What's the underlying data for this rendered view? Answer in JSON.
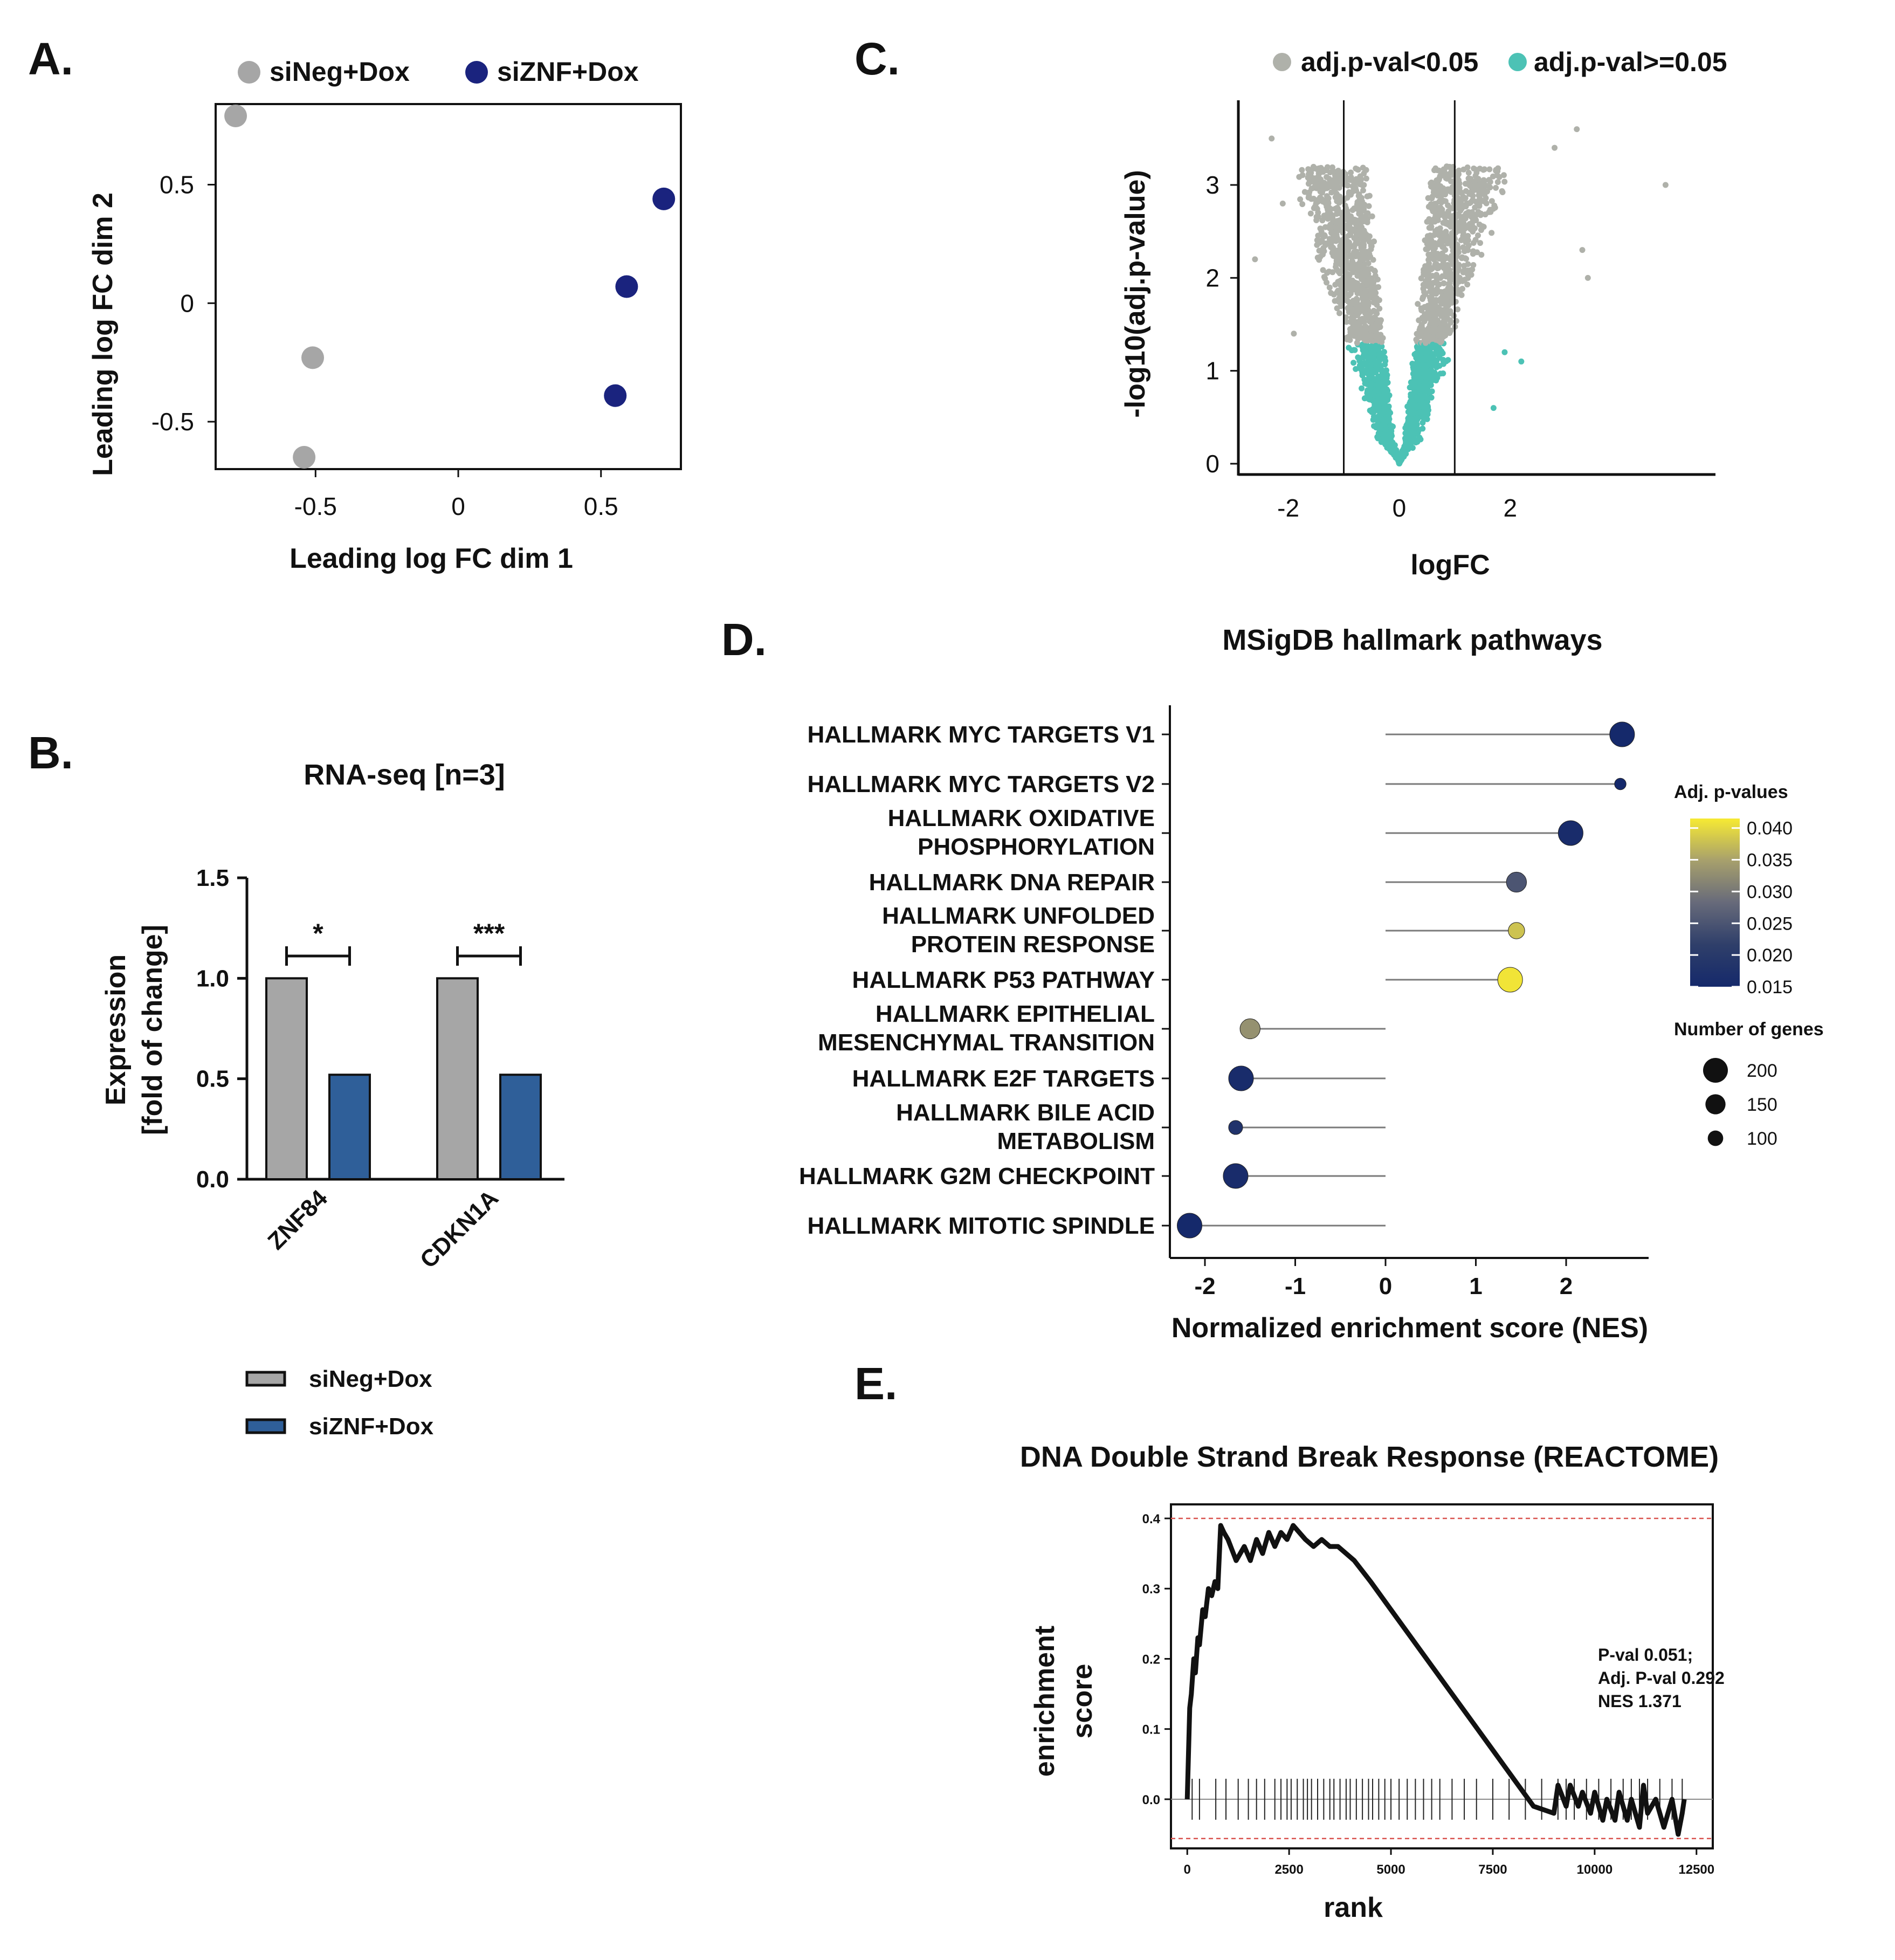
{
  "panels": {
    "A": {
      "label": "A."
    },
    "B": {
      "label": "B."
    },
    "C": {
      "label": "C."
    },
    "D": {
      "label": "D."
    },
    "E": {
      "label": "E."
    }
  },
  "chart_data": [
    {
      "id": "A",
      "type": "scatter",
      "title": "",
      "xlabel": "Leading log FC dim 1",
      "ylabel": "Leading log FC dim 2",
      "xlim": [
        -0.85,
        0.78
      ],
      "ylim": [
        -0.7,
        0.84
      ],
      "xticks": [
        "-0.5",
        "0",
        "0.5"
      ],
      "xtick_values": [
        -0.5,
        0,
        0.5
      ],
      "yticks": [
        "-0.5",
        "0",
        "0.5"
      ],
      "ytick_values": [
        -0.5,
        0,
        0.5
      ],
      "legend_position": "top",
      "series": [
        {
          "name": "siNeg+Dox",
          "color": "#a6a6a6",
          "points": [
            [
              -0.78,
              0.79
            ],
            [
              -0.51,
              -0.23
            ],
            [
              -0.54,
              -0.65
            ]
          ]
        },
        {
          "name": "siZNF+Dox",
          "color": "#1a237e",
          "points": [
            [
              0.72,
              0.44
            ],
            [
              0.59,
              0.07
            ],
            [
              0.55,
              -0.39
            ]
          ]
        }
      ]
    },
    {
      "id": "B",
      "type": "bar",
      "title": "RNA-seq [n=3]",
      "xlabel": "",
      "ylabel": "Expression [fold of change]",
      "ylabel_lines": [
        "Expression",
        "[fold of change]"
      ],
      "ylim": [
        0,
        1.5
      ],
      "yticks": [
        "0.0",
        "0.5",
        "1.0",
        "1.5"
      ],
      "ytick_values": [
        0,
        0.5,
        1.0,
        1.5
      ],
      "categories": [
        "ZNF84",
        "CDKN1A"
      ],
      "significance": [
        "*",
        "***"
      ],
      "legend_position": "bottom",
      "series": [
        {
          "name": "siNeg+Dox",
          "color": "#a6a6a6",
          "values": [
            1.0,
            1.0
          ]
        },
        {
          "name": "siZNF+Dox",
          "color": "#2f5f99",
          "values": [
            0.52,
            0.52
          ]
        }
      ]
    },
    {
      "id": "C",
      "type": "scatter",
      "subtype": "volcano",
      "title": "",
      "xlabel": "logFC",
      "ylabel": "-log10(adj.p-value)",
      "xlim": [
        -2.9,
        5.7
      ],
      "ylim": [
        -0.15,
        3.9
      ],
      "xticks": [
        "-2",
        "0",
        "2"
      ],
      "xtick_values": [
        -2,
        0,
        2
      ],
      "yticks": [
        "0",
        "1",
        "2",
        "3"
      ],
      "ytick_values": [
        0,
        1,
        2,
        3
      ],
      "threshold_lines_x": [
        -1,
        1
      ],
      "significance_cutoff_y": 1.3,
      "legend_position": "top",
      "series": [
        {
          "name": "adj.p-val<0.05",
          "color": "#afb1aa"
        },
        {
          "name": "adj.p-val>=0.05",
          "color": "#4cc2b5"
        }
      ]
    },
    {
      "id": "D",
      "type": "scatter",
      "subtype": "lollipop",
      "title": "MSigDB  hallmark pathways",
      "xlabel": "Normalized enrichment score (NES)",
      "ylabel": "",
      "xlim": [
        -2.4,
        2.85
      ],
      "xticks": [
        "-2",
        "-1",
        "0",
        "1",
        "2"
      ],
      "xtick_values": [
        -2,
        -1,
        0,
        1,
        2
      ],
      "color_legend_title": "Adj. p-values",
      "color_range": [
        0.015,
        0.0415
      ],
      "color_ticks": [
        "0.040",
        "0.035",
        "0.030",
        "0.025",
        "0.020",
        "0.015"
      ],
      "color_tick_values": [
        0.04,
        0.035,
        0.03,
        0.025,
        0.02,
        0.015
      ],
      "size_legend_title": "Number of genes",
      "size_ticks": [
        "200",
        "150",
        "100"
      ],
      "size_tick_values": [
        200,
        150,
        100
      ],
      "pathways": [
        {
          "name": [
            "HALLMARK MYC TARGETS V1"
          ],
          "nes": 2.62,
          "padj": 0.015,
          "size": 200
        },
        {
          "name": [
            "HALLMARK MYC TARGETS V2"
          ],
          "nes": 2.6,
          "padj": 0.015,
          "size": 58
        },
        {
          "name": [
            "HALLMARK OXIDATIVE",
            "PHOSPHORYLATION"
          ],
          "nes": 2.05,
          "padj": 0.016,
          "size": 200
        },
        {
          "name": [
            "HALLMARK DNA REPAIR"
          ],
          "nes": 1.45,
          "padj": 0.025,
          "size": 150
        },
        {
          "name": [
            "HALLMARK UNFOLDED",
            "PROTEIN RESPONSE"
          ],
          "nes": 1.45,
          "padj": 0.038,
          "size": 110
        },
        {
          "name": [
            "HALLMARK P53 PATHWAY"
          ],
          "nes": 1.38,
          "padj": 0.041,
          "size": 200
        },
        {
          "name": [
            "HALLMARK EPITHELIAL",
            "MESENCHYMAL TRANSITION"
          ],
          "nes": -1.5,
          "padj": 0.033,
          "size": 150
        },
        {
          "name": [
            "HALLMARK E2F TARGETS"
          ],
          "nes": -1.6,
          "padj": 0.016,
          "size": 200
        },
        {
          "name": [
            "HALLMARK BILE ACID",
            "METABOLISM"
          ],
          "nes": -1.66,
          "padj": 0.018,
          "size": 85
        },
        {
          "name": [
            "HALLMARK G2M CHECKPOINT"
          ],
          "nes": -1.66,
          "padj": 0.016,
          "size": 200
        },
        {
          "name": [
            "HALLMARK MITOTIC SPINDLE"
          ],
          "nes": -2.17,
          "padj": 0.015,
          "size": 200
        }
      ]
    },
    {
      "id": "E",
      "type": "line",
      "title": "DNA Double Strand Break Response (REACTOME)",
      "xlabel": "rank",
      "ylabel": "enrichment score",
      "ylabel_lines": [
        "enrichment",
        "score"
      ],
      "xlim": [
        -400,
        12900
      ],
      "ylim": [
        -0.07,
        0.42
      ],
      "xticks": [
        "0",
        "2500",
        "5000",
        "7500",
        "10000",
        "12500"
      ],
      "xtick_values": [
        0,
        2500,
        5000,
        7500,
        10000,
        12500
      ],
      "yticks": [
        "0.0",
        "0.1",
        "0.2",
        "0.3",
        "0.4"
      ],
      "ytick_values": [
        0,
        0.1,
        0.2,
        0.3,
        0.4
      ],
      "dashed_lines_y": [
        0.4,
        -0.056
      ],
      "annotation": [
        "P-val 0.051;",
        "Adj. P-val 0.292",
        "NES 1.371"
      ],
      "x": [
        0,
        60,
        100,
        160,
        200,
        260,
        300,
        380,
        440,
        520,
        600,
        680,
        750,
        820,
        900,
        1000,
        1200,
        1400,
        1550,
        1700,
        1850,
        2000,
        2150,
        2300,
        2450,
        2600,
        2750,
        2900,
        3100,
        3300,
        3500,
        3700,
        3900,
        4100,
        4500,
        5000,
        5500,
        6000,
        6500,
        7000,
        7500,
        8000,
        8500,
        9000,
        9100,
        9300,
        9400,
        9600,
        9700,
        9900,
        10000,
        10200,
        10300,
        10500,
        10600,
        10800,
        10900,
        11100,
        11200,
        11300,
        11500,
        11700,
        11900,
        12050,
        12150,
        12200
      ],
      "values": [
        0.0,
        0.13,
        0.15,
        0.2,
        0.18,
        0.23,
        0.22,
        0.27,
        0.26,
        0.3,
        0.29,
        0.31,
        0.3,
        0.39,
        0.38,
        0.37,
        0.34,
        0.36,
        0.34,
        0.37,
        0.35,
        0.38,
        0.36,
        0.38,
        0.37,
        0.39,
        0.38,
        0.37,
        0.36,
        0.37,
        0.36,
        0.36,
        0.35,
        0.34,
        0.31,
        0.27,
        0.23,
        0.19,
        0.15,
        0.11,
        0.07,
        0.03,
        -0.01,
        -0.02,
        0.02,
        -0.01,
        0.02,
        -0.01,
        0.01,
        -0.02,
        0.01,
        -0.03,
        0.0,
        -0.03,
        0.01,
        -0.03,
        0.0,
        -0.04,
        0.02,
        -0.02,
        0.0,
        -0.04,
        0.0,
        -0.05,
        -0.02,
        0.0
      ],
      "gene_hits": [
        120,
        300,
        700,
        950,
        1250,
        1500,
        1700,
        1900,
        2150,
        2300,
        2450,
        2550,
        2700,
        2850,
        2950,
        3050,
        3200,
        3350,
        3500,
        3600,
        3750,
        3900,
        4000,
        4150,
        4300,
        4450,
        4550,
        4700,
        4850,
        5000,
        5200,
        5400,
        5600,
        5800,
        6000,
        6200,
        6500,
        6800,
        7100,
        7500,
        7900,
        8300,
        8700,
        9100,
        9300,
        9500,
        9800,
        10100,
        10400,
        10700,
        10900,
        11100,
        11300,
        11600,
        11900,
        12150
      ]
    }
  ]
}
